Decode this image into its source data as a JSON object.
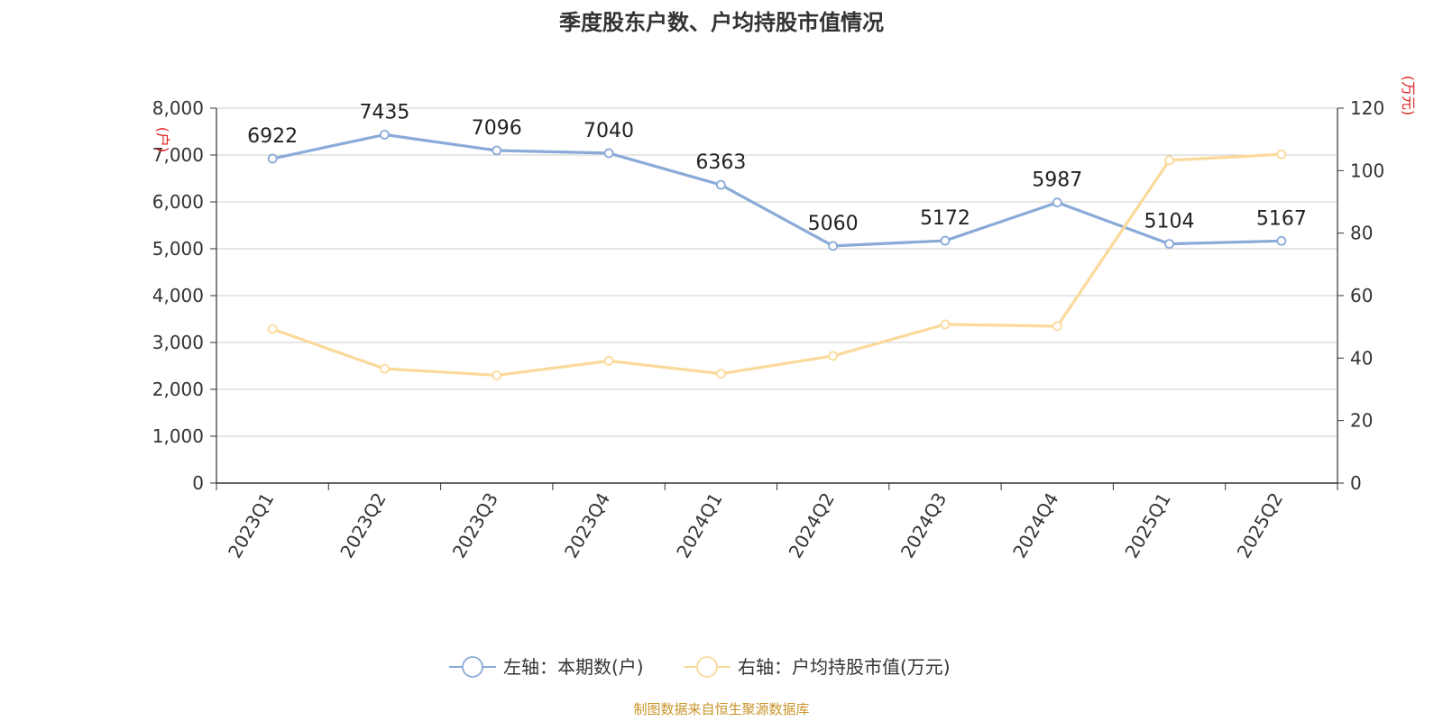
{
  "chart_data": {
    "type": "line",
    "title": "季度股东户数、户均持股市值情况",
    "categories": [
      "2023Q1",
      "2023Q2",
      "2023Q3",
      "2023Q4",
      "2024Q1",
      "2024Q2",
      "2024Q3",
      "2024Q4",
      "2025Q1",
      "2025Q2"
    ],
    "left_axis": {
      "unit": "(户)",
      "ylim": [
        0,
        8000
      ],
      "ticks": [
        "0",
        "1,000",
        "2,000",
        "3,000",
        "4,000",
        "5,000",
        "6,000",
        "7,000",
        "8,000"
      ]
    },
    "right_axis": {
      "unit": "(万元)",
      "ylim": [
        0,
        120
      ],
      "ticks": [
        "0",
        "20",
        "40",
        "60",
        "80",
        "100",
        "120"
      ]
    },
    "series": [
      {
        "name": "左轴：本期数(户)",
        "axis": "left",
        "color": "#8aaad8",
        "values": [
          6922,
          7435,
          7096,
          7040,
          6363,
          5060,
          5172,
          5987,
          5104,
          5167
        ],
        "labels": [
          "6922",
          "7435",
          "7096",
          "7040",
          "6363",
          "5060",
          "5172",
          "5987",
          "5104",
          "5167"
        ]
      },
      {
        "name": "右轴：户均持股市值(万元)",
        "axis": "right",
        "color": "#fbd99a",
        "values": [
          49.3,
          36.6,
          34.5,
          39.1,
          35.0,
          40.7,
          50.8,
          50.2,
          103.3,
          105.2
        ]
      }
    ],
    "grid": true,
    "legend_position": "bottom-center"
  },
  "footer": {
    "source": "制图数据来自恒生聚源数据库"
  }
}
